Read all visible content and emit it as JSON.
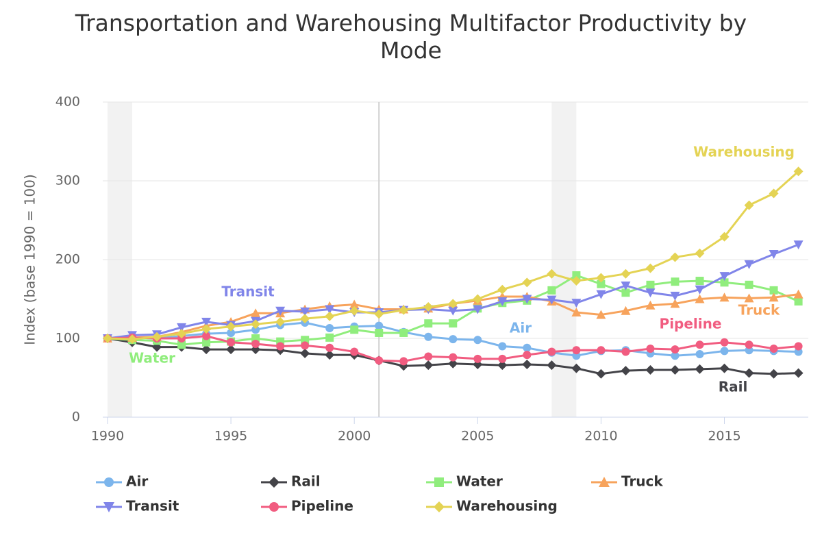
{
  "chart_data": {
    "type": "line",
    "title": "Transportation and Warehousing Multifactor Productivity by Mode",
    "y_label": "Index (base 1990 = 100)",
    "x": [
      1990,
      1991,
      1992,
      1993,
      1994,
      1995,
      1996,
      1997,
      1998,
      1999,
      2000,
      2001,
      2002,
      2003,
      2004,
      2005,
      2006,
      2007,
      2008,
      2009,
      2010,
      2011,
      2012,
      2013,
      2014,
      2015,
      2016,
      2017,
      2018
    ],
    "xlim": [
      1990,
      2018.4
    ],
    "xticks": [
      1990,
      1995,
      2000,
      2005,
      2010,
      2015
    ],
    "ylim": [
      0,
      400
    ],
    "yticks": [
      0,
      100,
      200,
      300,
      400
    ],
    "grid": true,
    "plot_bands": [
      [
        1990,
        1991
      ],
      [
        2008,
        2009
      ]
    ],
    "plot_lines": [
      2001
    ],
    "series": [
      {
        "name": "Air",
        "color": "#7cb5ec",
        "symbol": "circle",
        "values": [
          100,
          101,
          100,
          103,
          106,
          107,
          111,
          117,
          120,
          113,
          115,
          116,
          108,
          102,
          99,
          98,
          90,
          88,
          82,
          78,
          84,
          85,
          81,
          78,
          80,
          84,
          85,
          84,
          83
        ]
      },
      {
        "name": "Rail",
        "color": "#434348",
        "symbol": "diamond",
        "values": [
          100,
          95,
          89,
          89,
          86,
          86,
          86,
          85,
          81,
          79,
          79,
          72,
          65,
          66,
          68,
          67,
          66,
          67,
          66,
          62,
          55,
          59,
          60,
          60,
          61,
          62,
          56,
          55,
          56
        ]
      },
      {
        "name": "Water",
        "color": "#90ed7d",
        "symbol": "square",
        "values": [
          100,
          98,
          97,
          92,
          95,
          96,
          100,
          96,
          98,
          101,
          111,
          107,
          107,
          119,
          119,
          138,
          145,
          148,
          161,
          180,
          169,
          158,
          168,
          172,
          173,
          171,
          168,
          161,
          147
        ]
      },
      {
        "name": "Truck",
        "color": "#f7a35c",
        "symbol": "triangle",
        "values": [
          100,
          101,
          102,
          108,
          116,
          121,
          132,
          132,
          137,
          141,
          143,
          137,
          137,
          138,
          144,
          148,
          153,
          153,
          147,
          133,
          130,
          135,
          142,
          144,
          150,
          152,
          151,
          152,
          156
        ]
      },
      {
        "name": "Transit",
        "color": "#8085e9",
        "symbol": "triangle-down",
        "values": [
          100,
          104,
          105,
          114,
          121,
          117,
          122,
          135,
          134,
          137,
          133,
          133,
          136,
          137,
          135,
          137,
          147,
          150,
          149,
          145,
          156,
          167,
          158,
          154,
          162,
          179,
          194,
          207,
          219
        ]
      },
      {
        "name": "Pipeline",
        "color": "#f15c80",
        "symbol": "circle",
        "values": [
          100,
          101,
          100,
          100,
          103,
          95,
          93,
          90,
          91,
          88,
          83,
          72,
          71,
          77,
          76,
          74,
          74,
          79,
          83,
          85,
          85,
          83,
          87,
          86,
          92,
          95,
          92,
          87,
          90
        ]
      },
      {
        "name": "Warehousing",
        "color": "#e4d354",
        "symbol": "diamond",
        "values": [
          100,
          99,
          102,
          106,
          112,
          115,
          118,
          121,
          125,
          128,
          135,
          131,
          136,
          140,
          144,
          150,
          162,
          171,
          182,
          173,
          177,
          182,
          189,
          203,
          208,
          229,
          269,
          284,
          312
        ]
      }
    ]
  }
}
